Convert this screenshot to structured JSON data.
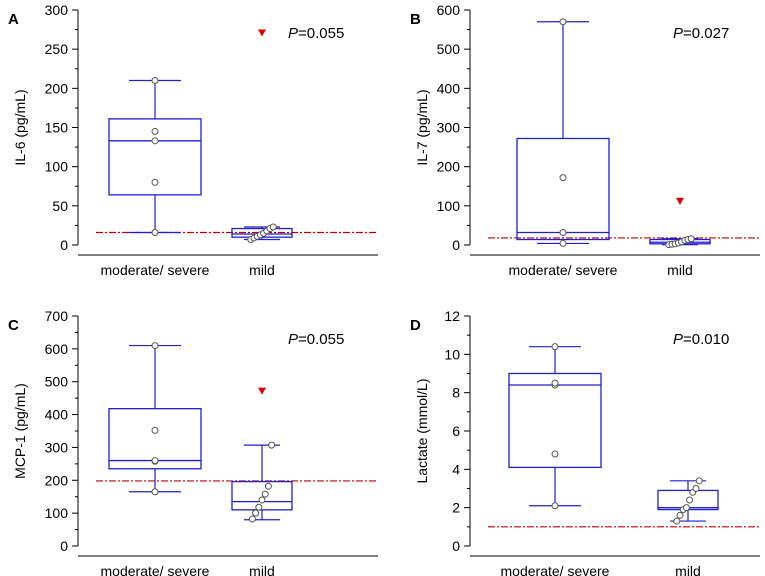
{
  "colors": {
    "box": "#1f1fd6",
    "ref_line": "#c00000",
    "outlier": "#e00000",
    "axis": "#000000",
    "point_fill": "#ffffff",
    "point_stroke": "#555555"
  },
  "chart_data": [
    {
      "type": "box",
      "panel_label": "A",
      "ylabel": "IL-6 (pg/mL)",
      "ylim": [
        0,
        300
      ],
      "yticks": [
        0,
        50,
        100,
        150,
        200,
        250,
        300
      ],
      "categories": [
        "moderate/ severe",
        "mild"
      ],
      "p_prefix": "P",
      "p_value": "=0.055",
      "reference_line": 16,
      "boxes": [
        {
          "whisker_low": 16,
          "q1": 64,
          "median": 133,
          "q3": 161,
          "whisker_high": 210,
          "points": [
            16,
            80,
            133,
            145,
            210
          ],
          "outliers": []
        },
        {
          "whisker_low": 7,
          "q1": 10,
          "median": 14,
          "q3": 21,
          "whisker_high": 23,
          "points": [
            7,
            9,
            11,
            13,
            15,
            18,
            21,
            23
          ],
          "outliers": [
            270
          ]
        }
      ]
    },
    {
      "type": "box",
      "panel_label": "B",
      "ylabel": "IL-7 (pg/mL)",
      "ylim": [
        0,
        600
      ],
      "yticks": [
        0,
        100,
        200,
        300,
        400,
        500,
        600
      ],
      "categories": [
        "moderate/ severe",
        "mild"
      ],
      "p_prefix": "P",
      "p_value": "=0.027",
      "reference_line": 18,
      "boxes": [
        {
          "whisker_low": 4,
          "q1": 14,
          "median": 32,
          "q3": 272,
          "whisker_high": 570,
          "points": [
            4,
            32,
            172,
            570
          ],
          "outliers": []
        },
        {
          "whisker_low": 1,
          "q1": 3,
          "median": 7,
          "q3": 14,
          "whisker_high": 16,
          "points": [
            1,
            2,
            3,
            5,
            8,
            12,
            14,
            16
          ],
          "outliers": [
            110
          ]
        }
      ]
    },
    {
      "type": "box",
      "panel_label": "C",
      "ylabel": "MCP-1 (pg/mL)",
      "ylim": [
        0,
        700
      ],
      "yticks": [
        0,
        100,
        200,
        300,
        400,
        500,
        600,
        700
      ],
      "categories": [
        "moderate/ severe",
        "mild"
      ],
      "p_prefix": "P",
      "p_value": "=0.055",
      "reference_line": 198,
      "boxes": [
        {
          "whisker_low": 165,
          "q1": 235,
          "median": 260,
          "q3": 418,
          "whisker_high": 610,
          "points": [
            165,
            258,
            260,
            352,
            610
          ],
          "outliers": []
        },
        {
          "whisker_low": 80,
          "q1": 110,
          "median": 135,
          "q3": 196,
          "whisker_high": 307,
          "points": [
            82,
            100,
            118,
            140,
            158,
            182,
            307
          ],
          "outliers": [
            470
          ]
        }
      ]
    },
    {
      "type": "box",
      "panel_label": "D",
      "ylabel": "Lactate (mmol/L)",
      "ylim": [
        0,
        12
      ],
      "yticks": [
        0,
        2,
        4,
        6,
        8,
        10,
        12
      ],
      "categories": [
        "moderate/ severe",
        "mild"
      ],
      "p_prefix": "P",
      "p_value": "=0.010",
      "reference_line": 1.0,
      "boxes": [
        {
          "whisker_low": 2.1,
          "q1": 4.1,
          "median": 8.4,
          "q3": 9.0,
          "whisker_high": 10.4,
          "points": [
            2.1,
            4.8,
            8.4,
            8.5,
            10.4
          ],
          "outliers": []
        },
        {
          "whisker_low": 1.3,
          "q1": 1.9,
          "median": 2.0,
          "q3": 2.9,
          "whisker_high": 3.4,
          "points": [
            1.3,
            1.6,
            1.9,
            2.0,
            2.4,
            2.8,
            3.0,
            3.4
          ],
          "outliers": []
        }
      ]
    }
  ]
}
